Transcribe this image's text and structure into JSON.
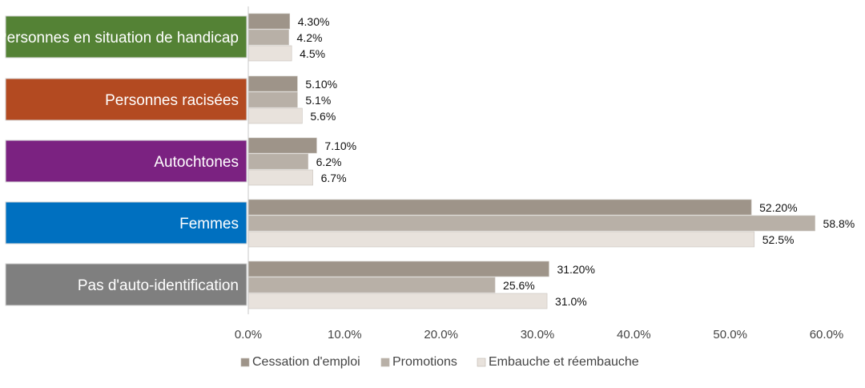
{
  "chart_data": {
    "type": "bar",
    "orientation": "horizontal",
    "title": "",
    "xlabel": "",
    "ylabel": "",
    "xlim": [
      0,
      60
    ],
    "x_ticks": [
      "0.0%",
      "10.0%",
      "20.0%",
      "30.0%",
      "40.0%",
      "50.0%",
      "60.0%"
    ],
    "x_tick_values": [
      0,
      10,
      20,
      30,
      40,
      50,
      60
    ],
    "grid": false,
    "legend_position": "bottom",
    "categories": [
      {
        "label": "Personnes en situation de handicap",
        "color": "#548235"
      },
      {
        "label": "Personnes racisées",
        "color": "#B34A21"
      },
      {
        "label": "Autochtones",
        "color": "#7B2281"
      },
      {
        "label": "Femmes",
        "color": "#0070C0"
      },
      {
        "label": "Pas d'auto-identification",
        "color": "#7F7F7F"
      }
    ],
    "series": [
      {
        "name": "Cessation d'emploi",
        "color": "#9E9489",
        "values": [
          4.3,
          5.1,
          7.1,
          52.2,
          31.2
        ],
        "labels": [
          "4.30%",
          "5.10%",
          "7.10%",
          "52.20%",
          "31.20%"
        ]
      },
      {
        "name": "Promotions",
        "color": "#B8B0A7",
        "values": [
          4.2,
          5.1,
          6.2,
          58.8,
          25.6
        ],
        "labels": [
          "4.2%",
          "5.1%",
          "6.2%",
          "58.8%",
          "25.6%"
        ]
      },
      {
        "name": "Embauche et réembauche",
        "color": "#E8E2DC",
        "values": [
          4.5,
          5.6,
          6.7,
          52.5,
          31.0
        ],
        "labels": [
          "4.5%",
          "5.6%",
          "6.7%",
          "52.5%",
          "31.0%"
        ]
      }
    ]
  }
}
